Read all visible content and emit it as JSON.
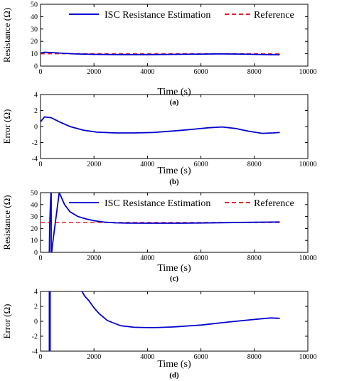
{
  "colors": {
    "estimate": "#0000cc",
    "reference": "#e8202a"
  },
  "chart_data": [
    {
      "type": "line",
      "caption": "(a)",
      "xlabel": "Time (s)",
      "ylabel": "Resistance (Ω)",
      "xlim": [
        0,
        10000
      ],
      "ylim": [
        0,
        50
      ],
      "xticks": [
        0,
        2000,
        4000,
        6000,
        8000,
        10000
      ],
      "yticks": [
        0,
        10,
        20,
        30,
        40,
        50
      ],
      "grid": false,
      "legend": "top",
      "series": [
        {
          "name": "ISC Resistance Estimation",
          "style": "solid",
          "x": [
            0,
            150,
            400,
            800,
            1300,
            2000,
            3000,
            4000,
            5000,
            6000,
            6700,
            7500,
            8200,
            8700,
            8950
          ],
          "y": [
            10.5,
            11.2,
            11.0,
            10.4,
            9.8,
            9.5,
            9.3,
            9.3,
            9.5,
            9.7,
            9.9,
            9.7,
            9.4,
            9.2,
            9.2
          ]
        },
        {
          "name": "Reference",
          "style": "dashed",
          "x": [
            0,
            8950
          ],
          "y": [
            10,
            10
          ]
        }
      ]
    },
    {
      "type": "line",
      "caption": "(b)",
      "xlabel": "Time (s)",
      "ylabel": "Error (Ω)",
      "xlim": [
        0,
        10000
      ],
      "ylim": [
        -4,
        4
      ],
      "xticks": [
        0,
        2000,
        4000,
        6000,
        8000,
        10000
      ],
      "yticks": [
        -4,
        -2,
        0,
        2,
        4
      ],
      "grid": false,
      "series": [
        {
          "name": "",
          "style": "solid",
          "x": [
            0,
            150,
            400,
            700,
            1100,
            1600,
            2100,
            2800,
            3500,
            4200,
            5000,
            5700,
            6300,
            6800,
            7300,
            7800,
            8300,
            8700,
            8950
          ],
          "y": [
            0.6,
            1.2,
            1.1,
            0.6,
            0.0,
            -0.45,
            -0.7,
            -0.8,
            -0.8,
            -0.75,
            -0.55,
            -0.35,
            -0.15,
            -0.05,
            -0.25,
            -0.6,
            -0.85,
            -0.8,
            -0.75
          ]
        }
      ]
    },
    {
      "type": "line",
      "caption": "(c)",
      "xlabel": "Time (s)",
      "ylabel": "Resistance (Ω)",
      "xlim": [
        0,
        10000
      ],
      "ylim": [
        0,
        50
      ],
      "xticks": [
        0,
        2000,
        4000,
        6000,
        8000,
        10000
      ],
      "yticks": [
        0,
        10,
        20,
        30,
        40,
        50
      ],
      "grid": false,
      "legend": "top",
      "series": [
        {
          "name": "ISC Resistance Estimation",
          "style": "solid",
          "x": [
            330,
            340,
            370,
            390,
            400,
            400,
            420,
            440,
            700,
            760,
            900,
            1100,
            1400,
            1700,
            2000,
            2400,
            2800,
            3200,
            4000,
            5000,
            6000,
            7000,
            8000,
            8950
          ],
          "y": [
            0,
            20,
            40,
            50,
            50,
            0,
            0,
            5,
            50,
            47,
            40,
            34,
            30,
            28,
            26.5,
            25.3,
            24.7,
            24.5,
            24.4,
            24.4,
            24.6,
            24.9,
            25.2,
            25.4
          ]
        },
        {
          "name": "Reference",
          "style": "dashed",
          "x": [
            0,
            8950
          ],
          "y": [
            25,
            25
          ]
        }
      ]
    },
    {
      "type": "line",
      "caption": "(d)",
      "xlabel": "Time (s)",
      "ylabel": "Error (Ω)",
      "xlim": [
        0,
        10000
      ],
      "ylim": [
        -4,
        4
      ],
      "xticks": [
        0,
        2000,
        4000,
        6000,
        8000,
        10000
      ],
      "yticks": [
        -4,
        -2,
        0,
        2,
        4
      ],
      "grid": false,
      "series": [
        {
          "name": "",
          "style": "solid",
          "x": [
            1550,
            1650,
            1800,
            2000,
            2200,
            2500,
            3000,
            3500,
            4000,
            4300,
            5000,
            6000,
            7000,
            8000,
            8600,
            8950
          ],
          "y": [
            4,
            3.4,
            2.8,
            1.8,
            1.0,
            0.1,
            -0.6,
            -0.8,
            -0.85,
            -0.85,
            -0.75,
            -0.5,
            -0.1,
            0.25,
            0.45,
            0.4
          ]
        },
        {
          "name": "",
          "style": "solid",
          "x": [
            330,
            330
          ],
          "y": [
            -4,
            4
          ]
        },
        {
          "name": "",
          "style": "solid",
          "x": [
            360,
            360
          ],
          "y": [
            -4,
            4
          ]
        }
      ]
    }
  ]
}
